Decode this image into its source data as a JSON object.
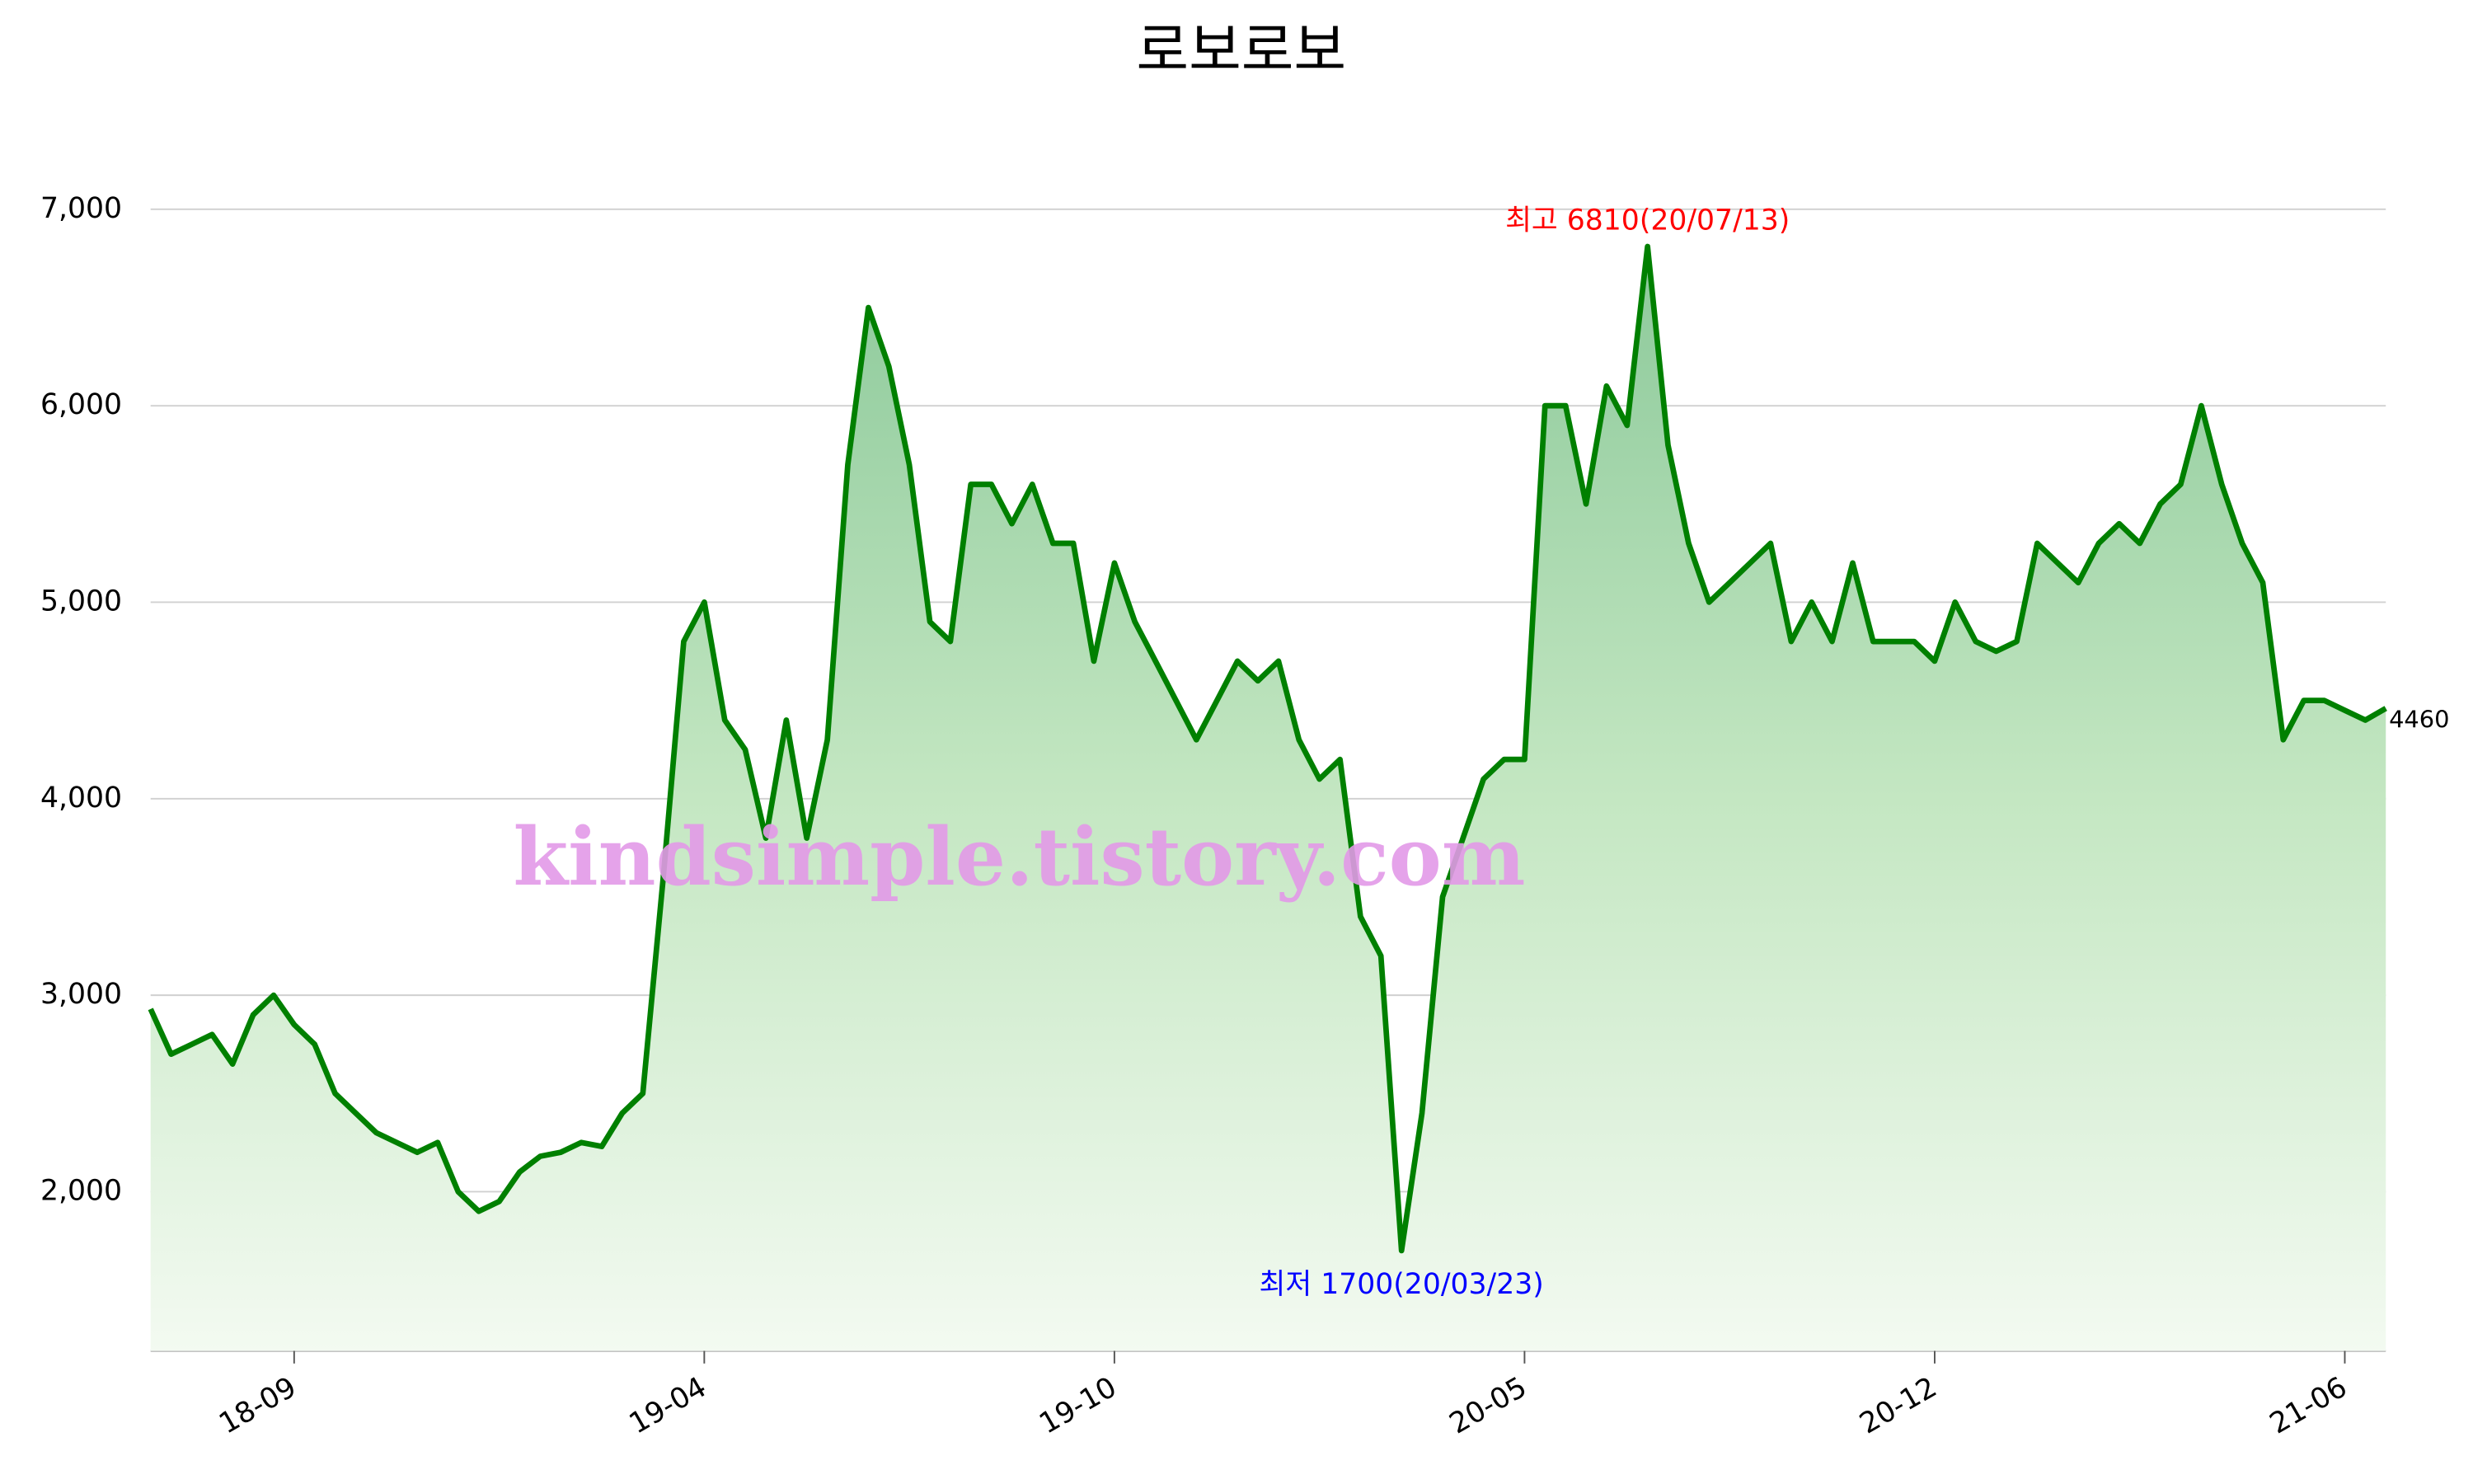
{
  "chart_data": {
    "type": "line",
    "title": "로보로보",
    "categories": [
      null,
      null,
      null,
      null,
      null,
      null,
      null,
      "18-09",
      null,
      null,
      null,
      null,
      null,
      null,
      null,
      null,
      null,
      null,
      null,
      null,
      null,
      null,
      null,
      null,
      null,
      null,
      null,
      "19-04",
      null,
      null,
      null,
      null,
      null,
      null,
      null,
      null,
      null,
      null,
      null,
      null,
      null,
      null,
      null,
      null,
      null,
      null,
      null,
      "19-10",
      null,
      null,
      null,
      null,
      null,
      null,
      null,
      null,
      null,
      null,
      null,
      null,
      null,
      null,
      null,
      null,
      null,
      null,
      null,
      "20-05",
      null,
      null,
      null,
      null,
      null,
      null,
      null,
      null,
      null,
      null,
      null,
      null,
      null,
      null,
      null,
      null,
      null,
      null,
      null,
      "20-12",
      null,
      null,
      null,
      null,
      null,
      null,
      null,
      null,
      null,
      null,
      null,
      null,
      null,
      null,
      null,
      null,
      null,
      null,
      null,
      "21-06",
      null,
      null
    ],
    "series": [
      {
        "name": "로보로보",
        "color": "#008000",
        "values": [
          2930,
          2700,
          2750,
          2800,
          2650,
          2900,
          3000,
          2850,
          2750,
          2500,
          2400,
          2300,
          2250,
          2200,
          2250,
          2000,
          1900,
          1950,
          2100,
          2180,
          2200,
          2250,
          2230,
          2400,
          2500,
          3600,
          4800,
          5000,
          4400,
          4250,
          3800,
          4400,
          3800,
          4300,
          5700,
          6500,
          6200,
          5700,
          4900,
          4800,
          5600,
          5600,
          5400,
          5600,
          5300,
          5300,
          4700,
          5200,
          4900,
          4700,
          4500,
          4300,
          4500,
          4700,
          4600,
          4700,
          4300,
          4100,
          4200,
          3400,
          3200,
          1700,
          2400,
          3500,
          3800,
          4100,
          4200,
          4200,
          6000,
          6000,
          5500,
          6100,
          5900,
          6810,
          5800,
          5300,
          5000,
          5100,
          5200,
          5300,
          4800,
          5000,
          4800,
          5200,
          4800,
          4800,
          4800,
          4700,
          5000,
          4800,
          4750,
          4800,
          5300,
          5200,
          5100,
          5300,
          5400,
          5300,
          5500,
          5600,
          6000,
          5600,
          5300,
          5100,
          4300,
          4500,
          4500,
          4450,
          4400,
          4460
        ]
      }
    ],
    "ylim": [
      1190,
      7100
    ],
    "yticks": [
      {
        "value": 2000,
        "label": "2,000"
      },
      {
        "value": 3000,
        "label": "3,000"
      },
      {
        "value": 4000,
        "label": "4,000"
      },
      {
        "value": 5000,
        "label": "5,000"
      },
      {
        "value": 6000,
        "label": "6,000"
      },
      {
        "value": 7000,
        "label": "7,000"
      }
    ],
    "grid": true,
    "annotations": [
      {
        "text": "최고 6810(20/07/13)",
        "color": "#ff0000",
        "index": 73
      },
      {
        "text": "최저 1700(20/03/23)",
        "color": "#0000ff",
        "index": 61
      },
      {
        "text": "4460",
        "color": "#000000",
        "index": 109
      }
    ],
    "watermark": "kindsimple.tistory.com"
  }
}
